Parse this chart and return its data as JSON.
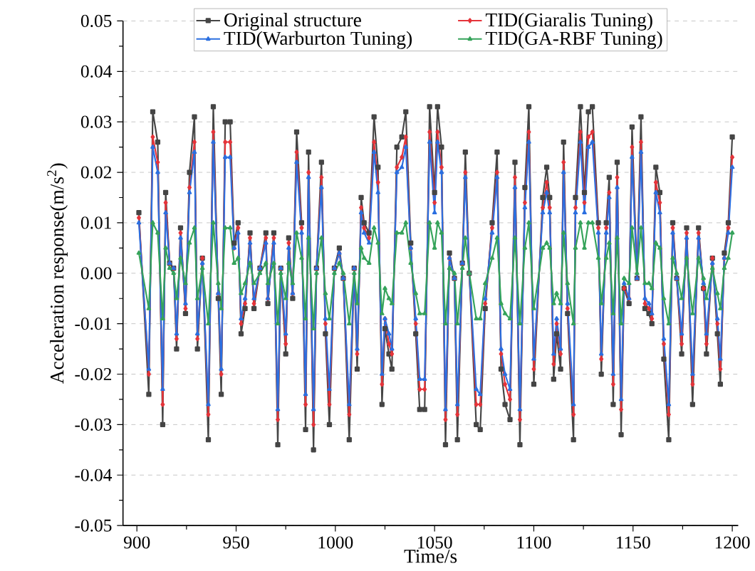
{
  "chart_data": {
    "type": "line",
    "xlabel": "Time/s",
    "ylabel": "Acceleration response(m/s$^{2}$)",
    "xlim": [
      893,
      1203
    ],
    "ylim": [
      -0.05,
      0.05
    ],
    "xticks": [
      900,
      950,
      1000,
      1050,
      1100,
      1150,
      1200
    ],
    "yticks": [
      -0.05,
      -0.04,
      -0.03,
      -0.02,
      -0.01,
      {
        "value": 0,
        "label": "0.00"
      },
      0.01,
      0.02,
      0.03,
      0.04,
      0.05
    ],
    "grid": "y",
    "legend": "top",
    "x": [
      901,
      906,
      908,
      910.5,
      913,
      914.5,
      916.5,
      918.5,
      920,
      922,
      924.5,
      926.5,
      929,
      930.5,
      933,
      936,
      938.5,
      941,
      942.5,
      944.5,
      947,
      949,
      951,
      952.5,
      954.5,
      957,
      959,
      962,
      965,
      966,
      969,
      971,
      972.5,
      975,
      976.5,
      978.5,
      980.5,
      983,
      985,
      986.5,
      989,
      990.5,
      993,
      995,
      997,
      999.5,
      1002,
      1004,
      1007,
      1009.5,
      1011,
      1013,
      1014.5,
      1017,
      1019.5,
      1021.5,
      1023.5,
      1025,
      1027,
      1028.5,
      1031,
      1033.5,
      1035.5,
      1038,
      1040.5,
      1042.5,
      1045,
      1047.5,
      1050,
      1051.5,
      1053.5,
      1055.5,
      1057.5,
      1060,
      1061.5,
      1064,
      1065.5,
      1067.5,
      1071,
      1073,
      1075.5,
      1079,
      1081.5,
      1083.5,
      1085.5,
      1088,
      1090.5,
      1093,
      1095.5,
      1097.5,
      1100,
      1104.5,
      1106.5,
      1108,
      1110,
      1111.5,
      1113.5,
      1115,
      1117,
      1120,
      1121,
      1123.5,
      1125.5,
      1127.5,
      1129.5,
      1132.5,
      1134,
      1136.5,
      1138,
      1140,
      1142,
      1144,
      1145.5,
      1148,
      1149.5,
      1152,
      1154,
      1156,
      1158,
      1159.5,
      1161.5,
      1163.5,
      1165.5,
      1168,
      1170,
      1172,
      1174.5,
      1177,
      1180,
      1183,
      1185.5,
      1187,
      1190,
      1192.5,
      1194,
      1196,
      1198,
      1200
    ],
    "series": [
      {
        "name": "Original structure",
        "color": "#454545",
        "marker": "square",
        "values": [
          0.012,
          -0.024,
          0.032,
          0.026,
          -0.03,
          0.016,
          0.002,
          0.001,
          -0.015,
          0.009,
          -0.008,
          0.02,
          0.031,
          -0.015,
          0.003,
          -0.033,
          0.033,
          -0.005,
          -0.024,
          0.03,
          0.03,
          0.006,
          0.01,
          -0.012,
          -0.007,
          0.008,
          -0.007,
          0.001,
          0.008,
          -0.006,
          0.008,
          -0.034,
          0.001,
          -0.016,
          0.007,
          -0.005,
          0.028,
          0.01,
          -0.031,
          0.024,
          -0.035,
          0.001,
          0.022,
          -0.012,
          -0.03,
          0.001,
          0.005,
          -0.001,
          -0.033,
          0.001,
          -0.019,
          0.015,
          0.01,
          0.008,
          0.031,
          0.021,
          -0.026,
          -0.011,
          -0.016,
          -0.019,
          0.025,
          0.027,
          0.032,
          0.006,
          -0.012,
          -0.027,
          -0.027,
          0.033,
          0.016,
          0.033,
          0.025,
          -0.034,
          0.004,
          -0.001,
          -0.033,
          0.002,
          0.024,
          0.0,
          -0.03,
          -0.031,
          -0.007,
          0.01,
          0.024,
          -0.019,
          -0.026,
          -0.029,
          0.022,
          -0.034,
          0.017,
          0.033,
          -0.022,
          0.015,
          0.021,
          0.015,
          -0.021,
          -0.012,
          -0.019,
          0.026,
          -0.008,
          -0.033,
          0.015,
          0.033,
          0.016,
          0.032,
          0.033,
          0.01,
          -0.02,
          0.01,
          0.019,
          -0.026,
          0.022,
          -0.032,
          -0.003,
          -0.006,
          0.029,
          -0.001,
          0.031,
          -0.007,
          -0.008,
          -0.01,
          0.021,
          0.016,
          -0.017,
          -0.033,
          0.01,
          -0.001,
          -0.016,
          0.009,
          -0.026,
          0.009,
          -0.003,
          -0.016,
          0.003,
          -0.012,
          -0.022,
          0.004,
          0.01,
          0.027
        ]
      },
      {
        "name": "TID(Giaralis Tuning)",
        "color": "#e5343a",
        "marker": "diamond",
        "values": [
          0.011,
          -0.02,
          0.027,
          0.022,
          -0.026,
          0.014,
          0.002,
          0.001,
          -0.013,
          0.008,
          -0.007,
          0.017,
          0.026,
          -0.013,
          0.003,
          -0.028,
          0.028,
          -0.004,
          -0.02,
          0.026,
          0.026,
          0.005,
          0.009,
          -0.01,
          -0.006,
          0.007,
          -0.006,
          0.001,
          0.007,
          -0.005,
          0.007,
          -0.029,
          0.001,
          -0.014,
          0.006,
          -0.004,
          0.024,
          0.009,
          -0.026,
          0.02,
          -0.03,
          0.001,
          0.019,
          -0.01,
          -0.026,
          0.001,
          0.004,
          -0.001,
          -0.028,
          0.001,
          -0.016,
          0.013,
          0.009,
          0.007,
          0.026,
          0.018,
          -0.022,
          -0.009,
          -0.014,
          -0.016,
          0.021,
          0.023,
          0.027,
          0.005,
          -0.01,
          -0.023,
          -0.023,
          0.028,
          0.014,
          0.028,
          0.021,
          -0.029,
          0.003,
          -0.001,
          -0.028,
          0.002,
          0.02,
          0.0,
          -0.026,
          -0.026,
          -0.006,
          0.009,
          0.02,
          -0.016,
          -0.022,
          -0.025,
          0.019,
          -0.029,
          0.014,
          0.028,
          -0.019,
          0.013,
          0.018,
          0.013,
          -0.018,
          -0.01,
          -0.016,
          0.022,
          -0.007,
          -0.028,
          0.013,
          0.028,
          0.014,
          0.027,
          0.028,
          0.009,
          -0.017,
          0.009,
          0.016,
          -0.022,
          0.019,
          -0.027,
          -0.003,
          -0.005,
          0.025,
          -0.001,
          0.026,
          -0.006,
          -0.007,
          -0.009,
          0.018,
          0.014,
          -0.014,
          -0.028,
          0.009,
          -0.001,
          -0.014,
          0.008,
          -0.022,
          0.008,
          -0.003,
          -0.014,
          0.003,
          -0.01,
          -0.019,
          0.003,
          0.009,
          0.023
        ]
      },
      {
        "name": "TID(Warburton Tuning)",
        "color": "#2b6fe0",
        "marker": "triangle",
        "values": [
          0.01,
          -0.019,
          0.025,
          0.02,
          -0.023,
          0.012,
          0.002,
          0.001,
          -0.012,
          0.007,
          -0.006,
          0.016,
          0.024,
          -0.012,
          0.002,
          -0.026,
          0.026,
          -0.004,
          -0.019,
          0.023,
          0.023,
          0.005,
          0.008,
          -0.009,
          -0.005,
          0.006,
          -0.005,
          0.001,
          0.006,
          -0.005,
          0.006,
          -0.027,
          0.001,
          -0.012,
          0.005,
          -0.004,
          0.022,
          0.008,
          -0.024,
          0.019,
          -0.027,
          0.001,
          0.017,
          -0.009,
          -0.023,
          0.001,
          0.004,
          -0.001,
          -0.026,
          0.001,
          -0.015,
          0.012,
          0.008,
          0.006,
          0.024,
          0.016,
          -0.02,
          -0.009,
          -0.012,
          -0.015,
          0.02,
          0.021,
          0.025,
          0.005,
          -0.009,
          -0.021,
          -0.021,
          0.026,
          0.012,
          0.026,
          0.02,
          -0.027,
          0.003,
          -0.001,
          -0.026,
          0.002,
          0.019,
          0.0,
          -0.023,
          -0.024,
          -0.005,
          0.008,
          0.019,
          -0.015,
          -0.02,
          -0.023,
          0.017,
          -0.027,
          0.013,
          0.026,
          -0.017,
          0.012,
          0.016,
          0.012,
          -0.016,
          -0.009,
          -0.015,
          0.02,
          -0.006,
          -0.026,
          0.012,
          0.026,
          0.012,
          0.025,
          0.026,
          0.008,
          -0.016,
          0.008,
          0.015,
          -0.02,
          0.017,
          -0.025,
          -0.002,
          -0.005,
          0.023,
          -0.001,
          0.024,
          -0.005,
          -0.006,
          -0.008,
          0.016,
          0.012,
          -0.013,
          -0.026,
          0.008,
          -0.001,
          -0.012,
          0.007,
          -0.02,
          0.007,
          -0.002,
          -0.012,
          0.002,
          -0.009,
          -0.017,
          0.003,
          0.008,
          0.021
        ]
      },
      {
        "name": "TID(GA-RBF Tuning)",
        "color": "#35a35a",
        "marker": "triangle",
        "values": [
          0.004,
          -0.007,
          0.01,
          0.008,
          -0.009,
          0.005,
          0.001,
          0.0,
          -0.005,
          0.003,
          -0.002,
          0.006,
          0.009,
          -0.005,
          0.001,
          -0.01,
          0.01,
          -0.002,
          -0.007,
          0.009,
          0.009,
          0.002,
          0.003,
          -0.004,
          -0.002,
          0.002,
          -0.002,
          0.0,
          0.002,
          -0.002,
          0.002,
          -0.01,
          0.0,
          -0.005,
          0.002,
          -0.002,
          0.008,
          0.003,
          -0.009,
          0.007,
          -0.011,
          0.0,
          0.007,
          -0.004,
          -0.009,
          0.0,
          0.002,
          0.0,
          -0.01,
          0.0,
          -0.006,
          0.005,
          0.003,
          0.002,
          0.009,
          0.006,
          -0.008,
          -0.003,
          -0.005,
          -0.006,
          0.008,
          0.008,
          0.01,
          0.002,
          -0.004,
          -0.008,
          -0.008,
          0.01,
          0.005,
          0.01,
          0.008,
          -0.01,
          0.001,
          0.0,
          -0.01,
          0.001,
          0.007,
          0.0,
          -0.009,
          -0.009,
          -0.002,
          0.003,
          0.007,
          -0.006,
          -0.008,
          -0.009,
          0.007,
          -0.01,
          0.005,
          0.01,
          -0.007,
          0.005,
          0.006,
          0.005,
          -0.006,
          -0.004,
          -0.006,
          0.008,
          -0.002,
          -0.01,
          0.005,
          0.01,
          0.005,
          0.01,
          0.01,
          0.003,
          -0.006,
          0.003,
          0.006,
          -0.008,
          0.007,
          -0.01,
          -0.001,
          -0.002,
          0.009,
          0.0,
          0.009,
          -0.002,
          -0.002,
          -0.003,
          0.006,
          0.005,
          -0.005,
          -0.01,
          0.003,
          0.0,
          -0.005,
          0.003,
          -0.008,
          0.003,
          -0.001,
          -0.005,
          0.001,
          -0.004,
          -0.007,
          0.001,
          0.003,
          0.008
        ]
      }
    ]
  }
}
